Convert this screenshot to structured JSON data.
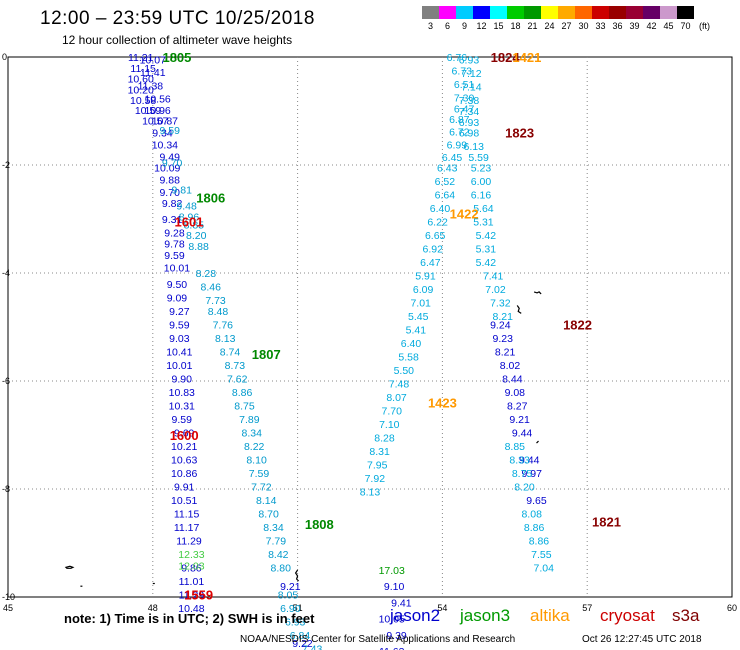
{
  "header": {
    "title": "12:00 – 23:59 UTC 10/25/2018",
    "subtitle": "12 hour collection of altimeter wave heights"
  },
  "colorbar": {
    "colors": [
      "#808080",
      "#ff00ff",
      "#00ccff",
      "#0000ff",
      "#00ffff",
      "#00cc00",
      "#009900",
      "#ffff00",
      "#ffaa00",
      "#ff6600",
      "#cc0000",
      "#990000",
      "#990033",
      "#660066",
      "#cc99cc",
      "#000000"
    ],
    "ticks": [
      "3",
      "6",
      "9",
      "12",
      "15",
      "18",
      "21",
      "24",
      "27",
      "30",
      "33",
      "36",
      "39",
      "42",
      "45",
      "70"
    ],
    "unit": "(ft)"
  },
  "axes": {
    "x_ticks": [
      "45",
      "48",
      "51",
      "54",
      "57",
      "60"
    ],
    "y_ticks": [
      "0",
      "-2",
      "-4",
      "-6",
      "-8",
      "-10"
    ]
  },
  "footer": {
    "note": "note: 1) Time is in UTC; 2) SWH is in feet",
    "credit": "NOAA/NESDIS Center for Satellite Applications and Research",
    "timestamp": "Oct 26 12:27:45 UTC 2018"
  },
  "satellites": [
    {
      "name": "jason2",
      "color": "#0000cc"
    },
    {
      "name": "jason3",
      "color": "#009900"
    },
    {
      "name": "altika",
      "color": "#ff9900"
    },
    {
      "name": "cryosat",
      "color": "#cc0000"
    },
    {
      "name": "s3a",
      "color": "#800000"
    }
  ],
  "pass_labels": [
    {
      "text": "1805",
      "lon": 48.5,
      "lat": 0.0,
      "color": "#008800"
    },
    {
      "text": "1806",
      "lon": 49.2,
      "lat": -2.6,
      "color": "#008800"
    },
    {
      "text": "1601",
      "lon": 48.75,
      "lat": -3.05,
      "color": "#dd0000"
    },
    {
      "text": "1807",
      "lon": 50.35,
      "lat": -5.5,
      "color": "#008800"
    },
    {
      "text": "1600",
      "lon": 48.65,
      "lat": -7.0,
      "color": "#dd0000"
    },
    {
      "text": "1808",
      "lon": 51.45,
      "lat": -8.65,
      "color": "#008800"
    },
    {
      "text": "1559",
      "lon": 48.95,
      "lat": -9.95,
      "color": "#dd0000"
    },
    {
      "text": "1824",
      "lon": 55.3,
      "lat": 0.0,
      "color": "#880000"
    },
    {
      "text": "1421",
      "lon": 55.75,
      "lat": 0.0,
      "color": "#ff9900"
    },
    {
      "text": "1823",
      "lon": 55.6,
      "lat": -1.4,
      "color": "#880000"
    },
    {
      "text": "1422",
      "lon": 54.45,
      "lat": -2.9,
      "color": "#ff9900"
    },
    {
      "text": "1822",
      "lon": 56.8,
      "lat": -4.95,
      "color": "#880000"
    },
    {
      "text": "1423",
      "lon": 54.0,
      "lat": -6.4,
      "color": "#ff9900"
    },
    {
      "text": "1821",
      "lon": 57.4,
      "lat": -8.6,
      "color": "#880000"
    }
  ],
  "tracks": [
    {
      "name": "jason2-west",
      "color": "#0000cc",
      "points": [
        {
          "lon": 47.75,
          "lat": 0.0,
          "v": "11.21"
        },
        {
          "lon": 48.0,
          "lat": -0.05,
          "v": "10.07"
        },
        {
          "lon": 47.8,
          "lat": -0.2,
          "v": "11.15"
        },
        {
          "lon": 48.0,
          "lat": -0.28,
          "v": "11.41"
        },
        {
          "lon": 47.75,
          "lat": -0.4,
          "v": "10.60"
        },
        {
          "lon": 47.95,
          "lat": -0.53,
          "v": "11.38"
        },
        {
          "lon": 47.75,
          "lat": -0.6,
          "v": "10.20"
        },
        {
          "lon": 47.8,
          "lat": -0.8,
          "v": "10.58"
        },
        {
          "lon": 48.1,
          "lat": -0.77,
          "v": "10.56"
        },
        {
          "lon": 47.9,
          "lat": -0.98,
          "v": "10.59"
        },
        {
          "lon": 48.1,
          "lat": -0.98,
          "v": "10.96"
        },
        {
          "lon": 48.05,
          "lat": -1.18,
          "v": "10.57"
        },
        {
          "lon": 48.25,
          "lat": -1.18,
          "v": "10.87"
        },
        {
          "lon": 48.2,
          "lat": -1.4,
          "v": "9.34"
        },
        {
          "lon": 48.25,
          "lat": -1.62,
          "v": "10.34"
        },
        {
          "lon": 48.35,
          "lat": -1.84,
          "v": "9.49"
        },
        {
          "lon": 48.3,
          "lat": -2.05,
          "v": "10.09"
        },
        {
          "lon": 48.35,
          "lat": -2.27,
          "v": "9.88"
        },
        {
          "lon": 48.35,
          "lat": -2.5,
          "v": "9.70"
        },
        {
          "lon": 48.4,
          "lat": -2.7,
          "v": "9.82"
        },
        {
          "lon": 48.4,
          "lat": -3.0,
          "v": "9.31"
        },
        {
          "lon": 48.45,
          "lat": -3.25,
          "v": "9.28"
        },
        {
          "lon": 48.45,
          "lat": -3.45,
          "v": "9.78"
        },
        {
          "lon": 48.45,
          "lat": -3.67,
          "v": "9.59"
        },
        {
          "lon": 48.5,
          "lat": -3.9,
          "v": "10.01"
        },
        {
          "lon": 48.5,
          "lat": -4.2,
          "v": "9.50"
        },
        {
          "lon": 48.5,
          "lat": -4.45,
          "v": "9.09"
        },
        {
          "lon": 48.55,
          "lat": -4.7,
          "v": "9.27"
        },
        {
          "lon": 48.55,
          "lat": -4.95,
          "v": "9.59"
        },
        {
          "lon": 48.55,
          "lat": -5.2,
          "v": "9.03"
        },
        {
          "lon": 48.55,
          "lat": -5.45,
          "v": "10.41"
        },
        {
          "lon": 48.55,
          "lat": -5.7,
          "v": "10.01"
        },
        {
          "lon": 48.6,
          "lat": -5.95,
          "v": "9.90"
        },
        {
          "lon": 48.6,
          "lat": -6.2,
          "v": "10.83"
        },
        {
          "lon": 48.6,
          "lat": -6.45,
          "v": "10.31"
        },
        {
          "lon": 48.6,
          "lat": -6.7,
          "v": "9.59"
        },
        {
          "lon": 48.65,
          "lat": -6.95,
          "v": "9.69"
        },
        {
          "lon": 48.65,
          "lat": -7.2,
          "v": "10.21"
        },
        {
          "lon": 48.65,
          "lat": -7.45,
          "v": "10.63"
        },
        {
          "lon": 48.65,
          "lat": -7.7,
          "v": "10.86"
        },
        {
          "lon": 48.65,
          "lat": -7.95,
          "v": "9.91"
        },
        {
          "lon": 48.65,
          "lat": -8.2,
          "v": "10.51"
        },
        {
          "lon": 48.7,
          "lat": -8.45,
          "v": "11.15"
        },
        {
          "lon": 48.7,
          "lat": -8.7,
          "v": "11.17"
        },
        {
          "lon": 48.75,
          "lat": -8.95,
          "v": "11.29"
        },
        {
          "lon": 48.8,
          "lat": -9.45,
          "v": "9.86"
        },
        {
          "lon": 48.8,
          "lat": -9.7,
          "v": "11.01"
        },
        {
          "lon": 48.8,
          "lat": -9.95,
          "v": "11.29"
        },
        {
          "lon": 48.8,
          "lat": -10.2,
          "v": "10.48"
        }
      ]
    },
    {
      "name": "jason3-west",
      "color": "#44cc44",
      "points": [
        {
          "lon": 48.8,
          "lat": -9.2,
          "v": "12.33"
        },
        {
          "lon": 48.8,
          "lat": -9.42,
          "v": "12.03"
        }
      ]
    },
    {
      "name": "cyan-west",
      "color": "#0099cc",
      "points": [
        {
          "lon": 48.35,
          "lat": -1.35,
          "v": "9.59"
        },
        {
          "lon": 48.4,
          "lat": -1.95,
          "v": "9.70"
        },
        {
          "lon": 48.6,
          "lat": -2.45,
          "v": "9.81"
        },
        {
          "lon": 48.7,
          "lat": -2.75,
          "v": "9.48"
        },
        {
          "lon": 48.75,
          "lat": -2.95,
          "v": "8.96"
        },
        {
          "lon": 48.85,
          "lat": -3.1,
          "v": "8.85"
        },
        {
          "lon": 48.9,
          "lat": -3.3,
          "v": "8.20"
        },
        {
          "lon": 48.95,
          "lat": -3.5,
          "v": "8.88"
        },
        {
          "lon": 49.1,
          "lat": -4.0,
          "v": "8.28"
        },
        {
          "lon": 49.2,
          "lat": -4.25,
          "v": "8.46"
        },
        {
          "lon": 49.3,
          "lat": -4.5,
          "v": "7.73"
        },
        {
          "lon": 49.35,
          "lat": -4.7,
          "v": "8.48"
        },
        {
          "lon": 49.45,
          "lat": -4.95,
          "v": "7.76"
        },
        {
          "lon": 49.5,
          "lat": -5.2,
          "v": "8.13"
        },
        {
          "lon": 49.6,
          "lat": -5.45,
          "v": "8.74"
        },
        {
          "lon": 49.7,
          "lat": -5.7,
          "v": "8.73"
        },
        {
          "lon": 49.75,
          "lat": -5.95,
          "v": "7.62"
        },
        {
          "lon": 49.85,
          "lat": -6.2,
          "v": "8.86"
        },
        {
          "lon": 49.9,
          "lat": -6.45,
          "v": "8.75"
        },
        {
          "lon": 50.0,
          "lat": -6.7,
          "v": "7.89"
        },
        {
          "lon": 50.05,
          "lat": -6.95,
          "v": "8.34"
        },
        {
          "lon": 50.1,
          "lat": -7.2,
          "v": "8.22"
        },
        {
          "lon": 50.15,
          "lat": -7.45,
          "v": "8.10"
        },
        {
          "lon": 50.2,
          "lat": -7.7,
          "v": "7.59"
        },
        {
          "lon": 50.25,
          "lat": -7.95,
          "v": "7.72"
        },
        {
          "lon": 50.35,
          "lat": -8.2,
          "v": "8.14"
        },
        {
          "lon": 50.4,
          "lat": -8.45,
          "v": "8.70"
        },
        {
          "lon": 50.5,
          "lat": -8.7,
          "v": "8.34"
        },
        {
          "lon": 50.55,
          "lat": -8.95,
          "v": "7.79"
        },
        {
          "lon": 50.6,
          "lat": -9.2,
          "v": "8.42"
        },
        {
          "lon": 50.65,
          "lat": -9.45,
          "v": "8.80"
        },
        {
          "lon": 50.8,
          "lat": -9.95,
          "v": "8.05"
        },
        {
          "lon": 50.85,
          "lat": -10.2,
          "v": "6.90"
        },
        {
          "lon": 50.95,
          "lat": -10.45,
          "v": "6.93"
        },
        {
          "lon": 51.05,
          "lat": -10.7,
          "v": "6.84"
        },
        {
          "lon": 51.3,
          "lat": -10.95,
          "v": "7.43"
        }
      ]
    },
    {
      "name": "jason2-mid",
      "color": "#0000cc",
      "points": [
        {
          "lon": 50.85,
          "lat": -9.8,
          "v": "9.21"
        },
        {
          "lon": 51.1,
          "lat": -10.85,
          "v": "9.22"
        },
        {
          "lon": 53.0,
          "lat": -9.8,
          "v": "9.10"
        },
        {
          "lon": 53.15,
          "lat": -10.1,
          "v": "9.41"
        },
        {
          "lon": 52.95,
          "lat": -10.4,
          "v": "10.05"
        },
        {
          "lon": 53.05,
          "lat": -10.7,
          "v": "9.39"
        },
        {
          "lon": 52.95,
          "lat": -11.0,
          "v": "11.63"
        },
        {
          "lon": 52.95,
          "lat": -11.3,
          "v": "9.13"
        }
      ]
    },
    {
      "name": "jason3-mid",
      "color": "#009900",
      "points": [
        {
          "lon": 52.95,
          "lat": -9.5,
          "v": "17.03"
        }
      ]
    },
    {
      "name": "cyan-mid",
      "color": "#00aadd",
      "points": [
        {
          "lon": 54.3,
          "lat": 0.0,
          "v": "6.76"
        },
        {
          "lon": 54.55,
          "lat": -0.05,
          "v": "6.93"
        },
        {
          "lon": 54.4,
          "lat": -0.25,
          "v": "6.73"
        },
        {
          "lon": 54.6,
          "lat": -0.3,
          "v": "7.12"
        },
        {
          "lon": 54.45,
          "lat": -0.5,
          "v": "6.51"
        },
        {
          "lon": 54.6,
          "lat": -0.55,
          "v": "7.14"
        },
        {
          "lon": 54.45,
          "lat": -0.75,
          "v": "7.30"
        },
        {
          "lon": 54.55,
          "lat": -0.8,
          "v": "7.38"
        },
        {
          "lon": 54.45,
          "lat": -0.95,
          "v": "6.47"
        },
        {
          "lon": 54.55,
          "lat": -1.0,
          "v": "7.34"
        },
        {
          "lon": 54.35,
          "lat": -1.15,
          "v": "6.87"
        },
        {
          "lon": 54.55,
          "lat": -1.2,
          "v": "6.93"
        },
        {
          "lon": 54.35,
          "lat": -1.38,
          "v": "6.72"
        },
        {
          "lon": 54.55,
          "lat": -1.4,
          "v": "6.98"
        },
        {
          "lon": 54.3,
          "lat": -1.62,
          "v": "6.99"
        },
        {
          "lon": 54.65,
          "lat": -1.65,
          "v": "6.13"
        },
        {
          "lon": 54.2,
          "lat": -1.85,
          "v": "6.45"
        },
        {
          "lon": 54.75,
          "lat": -1.85,
          "v": "5.59"
        },
        {
          "lon": 54.1,
          "lat": -2.05,
          "v": "6.43"
        },
        {
          "lon": 54.8,
          "lat": -2.05,
          "v": "5.23"
        },
        {
          "lon": 54.05,
          "lat": -2.3,
          "v": "6.52"
        },
        {
          "lon": 54.8,
          "lat": -2.3,
          "v": "6.00"
        },
        {
          "lon": 54.05,
          "lat": -2.55,
          "v": "6.64"
        },
        {
          "lon": 54.8,
          "lat": -2.55,
          "v": "6.16"
        },
        {
          "lon": 53.95,
          "lat": -2.8,
          "v": "6.40"
        },
        {
          "lon": 54.85,
          "lat": -2.8,
          "v": "5.64"
        },
        {
          "lon": 53.9,
          "lat": -3.05,
          "v": "6.22"
        },
        {
          "lon": 54.85,
          "lat": -3.05,
          "v": "5.31"
        },
        {
          "lon": 53.85,
          "lat": -3.3,
          "v": "6.65"
        },
        {
          "lon": 54.9,
          "lat": -3.3,
          "v": "5.42"
        },
        {
          "lon": 53.8,
          "lat": -3.55,
          "v": "6.92"
        },
        {
          "lon": 54.9,
          "lat": -3.55,
          "v": "5.31"
        },
        {
          "lon": 53.75,
          "lat": -3.8,
          "v": "6.47"
        },
        {
          "lon": 54.9,
          "lat": -3.8,
          "v": "5.42"
        },
        {
          "lon": 53.65,
          "lat": -4.05,
          "v": "5.91"
        },
        {
          "lon": 55.05,
          "lat": -4.05,
          "v": "7.41"
        },
        {
          "lon": 53.6,
          "lat": -4.3,
          "v": "6.09"
        },
        {
          "lon": 55.1,
          "lat": -4.3,
          "v": "7.02"
        },
        {
          "lon": 53.55,
          "lat": -4.55,
          "v": "7.01"
        },
        {
          "lon": 55.2,
          "lat": -4.55,
          "v": "7.32"
        },
        {
          "lon": 53.5,
          "lat": -4.8,
          "v": "5.45"
        },
        {
          "lon": 55.25,
          "lat": -4.8,
          "v": "8.21"
        },
        {
          "lon": 53.45,
          "lat": -5.05,
          "v": "5.41"
        },
        {
          "lon": 53.35,
          "lat": -5.3,
          "v": "6.40"
        },
        {
          "lon": 53.3,
          "lat": -5.55,
          "v": "5.58"
        },
        {
          "lon": 53.2,
          "lat": -5.8,
          "v": "5.50"
        },
        {
          "lon": 53.1,
          "lat": -6.05,
          "v": "7.48"
        },
        {
          "lon": 53.05,
          "lat": -6.3,
          "v": "8.07"
        },
        {
          "lon": 52.95,
          "lat": -6.55,
          "v": "7.70"
        },
        {
          "lon": 52.9,
          "lat": -6.8,
          "v": "7.10"
        },
        {
          "lon": 52.8,
          "lat": -7.05,
          "v": "8.28"
        },
        {
          "lon": 52.7,
          "lat": -7.3,
          "v": "8.31"
        },
        {
          "lon": 52.65,
          "lat": -7.55,
          "v": "7.95"
        },
        {
          "lon": 52.6,
          "lat": -7.8,
          "v": "7.92"
        },
        {
          "lon": 52.5,
          "lat": -8.05,
          "v": "8.13"
        }
      ]
    },
    {
      "name": "jason2-east",
      "color": "#0000cc",
      "points": [
        {
          "lon": 55.2,
          "lat": -4.95,
          "v": "9.24"
        },
        {
          "lon": 55.25,
          "lat": -5.2,
          "v": "9.23"
        },
        {
          "lon": 55.3,
          "lat": -5.45,
          "v": "8.21"
        },
        {
          "lon": 55.4,
          "lat": -5.7,
          "v": "8.02"
        },
        {
          "lon": 55.45,
          "lat": -5.95,
          "v": "8.44"
        },
        {
          "lon": 55.5,
          "lat": -6.2,
          "v": "9.08"
        },
        {
          "lon": 55.55,
          "lat": -6.45,
          "v": "8.27"
        },
        {
          "lon": 55.6,
          "lat": -6.7,
          "v": "9.21"
        },
        {
          "lon": 55.65,
          "lat": -6.95,
          "v": "9.44"
        },
        {
          "lon": 55.8,
          "lat": -7.45,
          "v": "9.44"
        },
        {
          "lon": 55.85,
          "lat": -7.7,
          "v": "9.97"
        },
        {
          "lon": 55.95,
          "lat": -8.2,
          "v": "9.65"
        }
      ]
    },
    {
      "name": "cyan-east",
      "color": "#00aadd",
      "points": [
        {
          "lon": 55.5,
          "lat": -7.2,
          "v": "8.85"
        },
        {
          "lon": 55.6,
          "lat": -7.45,
          "v": "8.33"
        },
        {
          "lon": 55.65,
          "lat": -7.7,
          "v": "8.75"
        },
        {
          "lon": 55.7,
          "lat": -7.95,
          "v": "8.20"
        },
        {
          "lon": 55.85,
          "lat": -8.45,
          "v": "8.08"
        },
        {
          "lon": 55.9,
          "lat": -8.7,
          "v": "8.86"
        },
        {
          "lon": 56.0,
          "lat": -8.95,
          "v": "8.86"
        },
        {
          "lon": 56.05,
          "lat": -9.2,
          "v": "7.55"
        },
        {
          "lon": 56.1,
          "lat": -9.45,
          "v": "7.04"
        }
      ]
    }
  ]
}
